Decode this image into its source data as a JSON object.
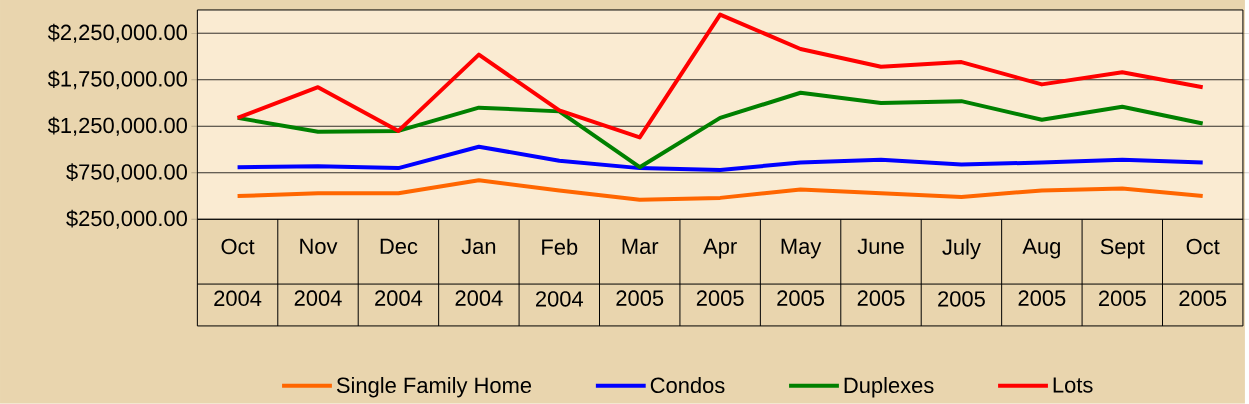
{
  "chart_data": {
    "type": "line",
    "categories": [
      "Oct 2004",
      "Nov 2004",
      "Dec 2004",
      "Jan 2004",
      "Feb 2004",
      "Mar 2005",
      "Apr 2005",
      "May 2005",
      "June 2005",
      "July 2005",
      "Aug 2005",
      "Sept 2005",
      "Oct 2005"
    ],
    "series": [
      {
        "name": "Single Family Home",
        "color": "#ff6600",
        "values": [
          500000,
          530000,
          530000,
          670000,
          560000,
          460000,
          480000,
          570000,
          530000,
          490000,
          560000,
          580000,
          500000
        ]
      },
      {
        "name": "Condos",
        "color": "#0000ff",
        "values": [
          810000,
          820000,
          800000,
          1030000,
          880000,
          800000,
          780000,
          860000,
          890000,
          840000,
          860000,
          890000,
          860000
        ]
      },
      {
        "name": "Duplexes",
        "color": "#008000",
        "values": [
          1340000,
          1190000,
          1200000,
          1450000,
          1410000,
          810000,
          1340000,
          1610000,
          1500000,
          1520000,
          1320000,
          1460000,
          1280000
        ]
      },
      {
        "name": "Lots",
        "color": "#ff0000",
        "values": [
          1340000,
          1670000,
          1200000,
          2020000,
          1420000,
          1130000,
          2450000,
          2080000,
          1890000,
          1940000,
          1700000,
          1830000,
          1670000
        ]
      }
    ],
    "ylim": [
      250000,
      2500000
    ],
    "yticks": [
      {
        "value": 250000,
        "label": "$250,000.00"
      },
      {
        "value": 750000,
        "label": "$750,000.00"
      },
      {
        "value": 1250000,
        "label": "$1,250,000.00"
      },
      {
        "value": 1750000,
        "label": "$1,750,000.00"
      },
      {
        "value": 2250000,
        "label": "$2,250,000.00"
      }
    ],
    "grid": "y",
    "legend": "bottom"
  }
}
